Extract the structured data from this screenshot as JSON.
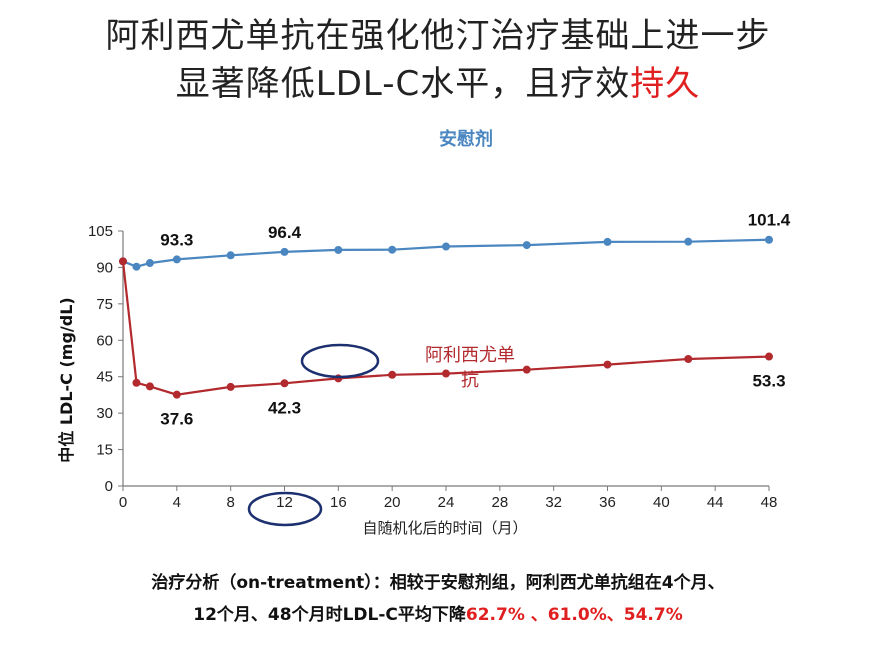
{
  "slide": {
    "title_line1": "阿利西尤单抗在强化他汀治疗基础上进一步",
    "title_line2_main": "显著降低LDL-C水平，且疗效",
    "title_line2_emph": "持久",
    "footer_line1": "治疗分析（on-treatment）：相较于安慰剂组，阿利西尤单抗组在4个月、",
    "footer_line2_main": "12个月、48个月时LDL-C平均下降",
    "footer_line2_emph": "62.7% 、61.0%、54.7%"
  },
  "colors": {
    "placebo": "#4a86c0",
    "alirocumab": "#b22a2e",
    "highlight_circle": "#1c2f6e",
    "emphasis": "#e02020"
  },
  "chart_data": {
    "type": "line",
    "xlabel": "自随机化后的时间（月）",
    "ylabel": "中位 LDL-C (mg/dL)",
    "xlim": [
      0,
      48
    ],
    "ylim": [
      0,
      105
    ],
    "xticks": [
      0,
      4,
      8,
      12,
      16,
      20,
      24,
      28,
      32,
      36,
      40,
      44,
      48
    ],
    "yticks": [
      0,
      15,
      30,
      45,
      60,
      75,
      90,
      105
    ],
    "grid": false,
    "series": [
      {
        "name": "安慰剂",
        "color": "#4a86c0",
        "x": [
          0,
          1,
          2,
          4,
          8,
          12,
          16,
          20,
          24,
          30,
          36,
          42,
          48
        ],
        "y": [
          92.5,
          90.3,
          91.8,
          93.3,
          95.0,
          96.4,
          97.2,
          97.3,
          98.6,
          99.2,
          100.5,
          100.6,
          101.4
        ]
      },
      {
        "name": "阿利西尤单抗",
        "color": "#b22a2e",
        "x": [
          0,
          1,
          2,
          4,
          8,
          12,
          16,
          20,
          24,
          30,
          36,
          42,
          48
        ],
        "y": [
          92.5,
          42.5,
          41.0,
          37.6,
          40.8,
          42.3,
          44.3,
          45.8,
          46.3,
          47.9,
          50.0,
          52.3,
          53.3
        ]
      }
    ],
    "data_labels": [
      {
        "series": 0,
        "x": 4,
        "y": 93.3,
        "text": "93.3",
        "pos": "above"
      },
      {
        "series": 0,
        "x": 12,
        "y": 96.4,
        "text": "96.4",
        "pos": "above"
      },
      {
        "series": 0,
        "x": 48,
        "y": 101.4,
        "text": "101.4",
        "pos": "above"
      },
      {
        "series": 1,
        "x": 4,
        "y": 37.6,
        "text": "37.6",
        "pos": "below"
      },
      {
        "series": 1,
        "x": 12,
        "y": 42.3,
        "text": "42.3",
        "pos": "below"
      },
      {
        "series": 1,
        "x": 48,
        "y": 53.3,
        "text": "53.3",
        "pos": "below"
      }
    ],
    "series_labels": {
      "placebo": "安慰剂",
      "alirocumab_line1": "阿利西尤单",
      "alirocumab_line2": "抗"
    }
  }
}
